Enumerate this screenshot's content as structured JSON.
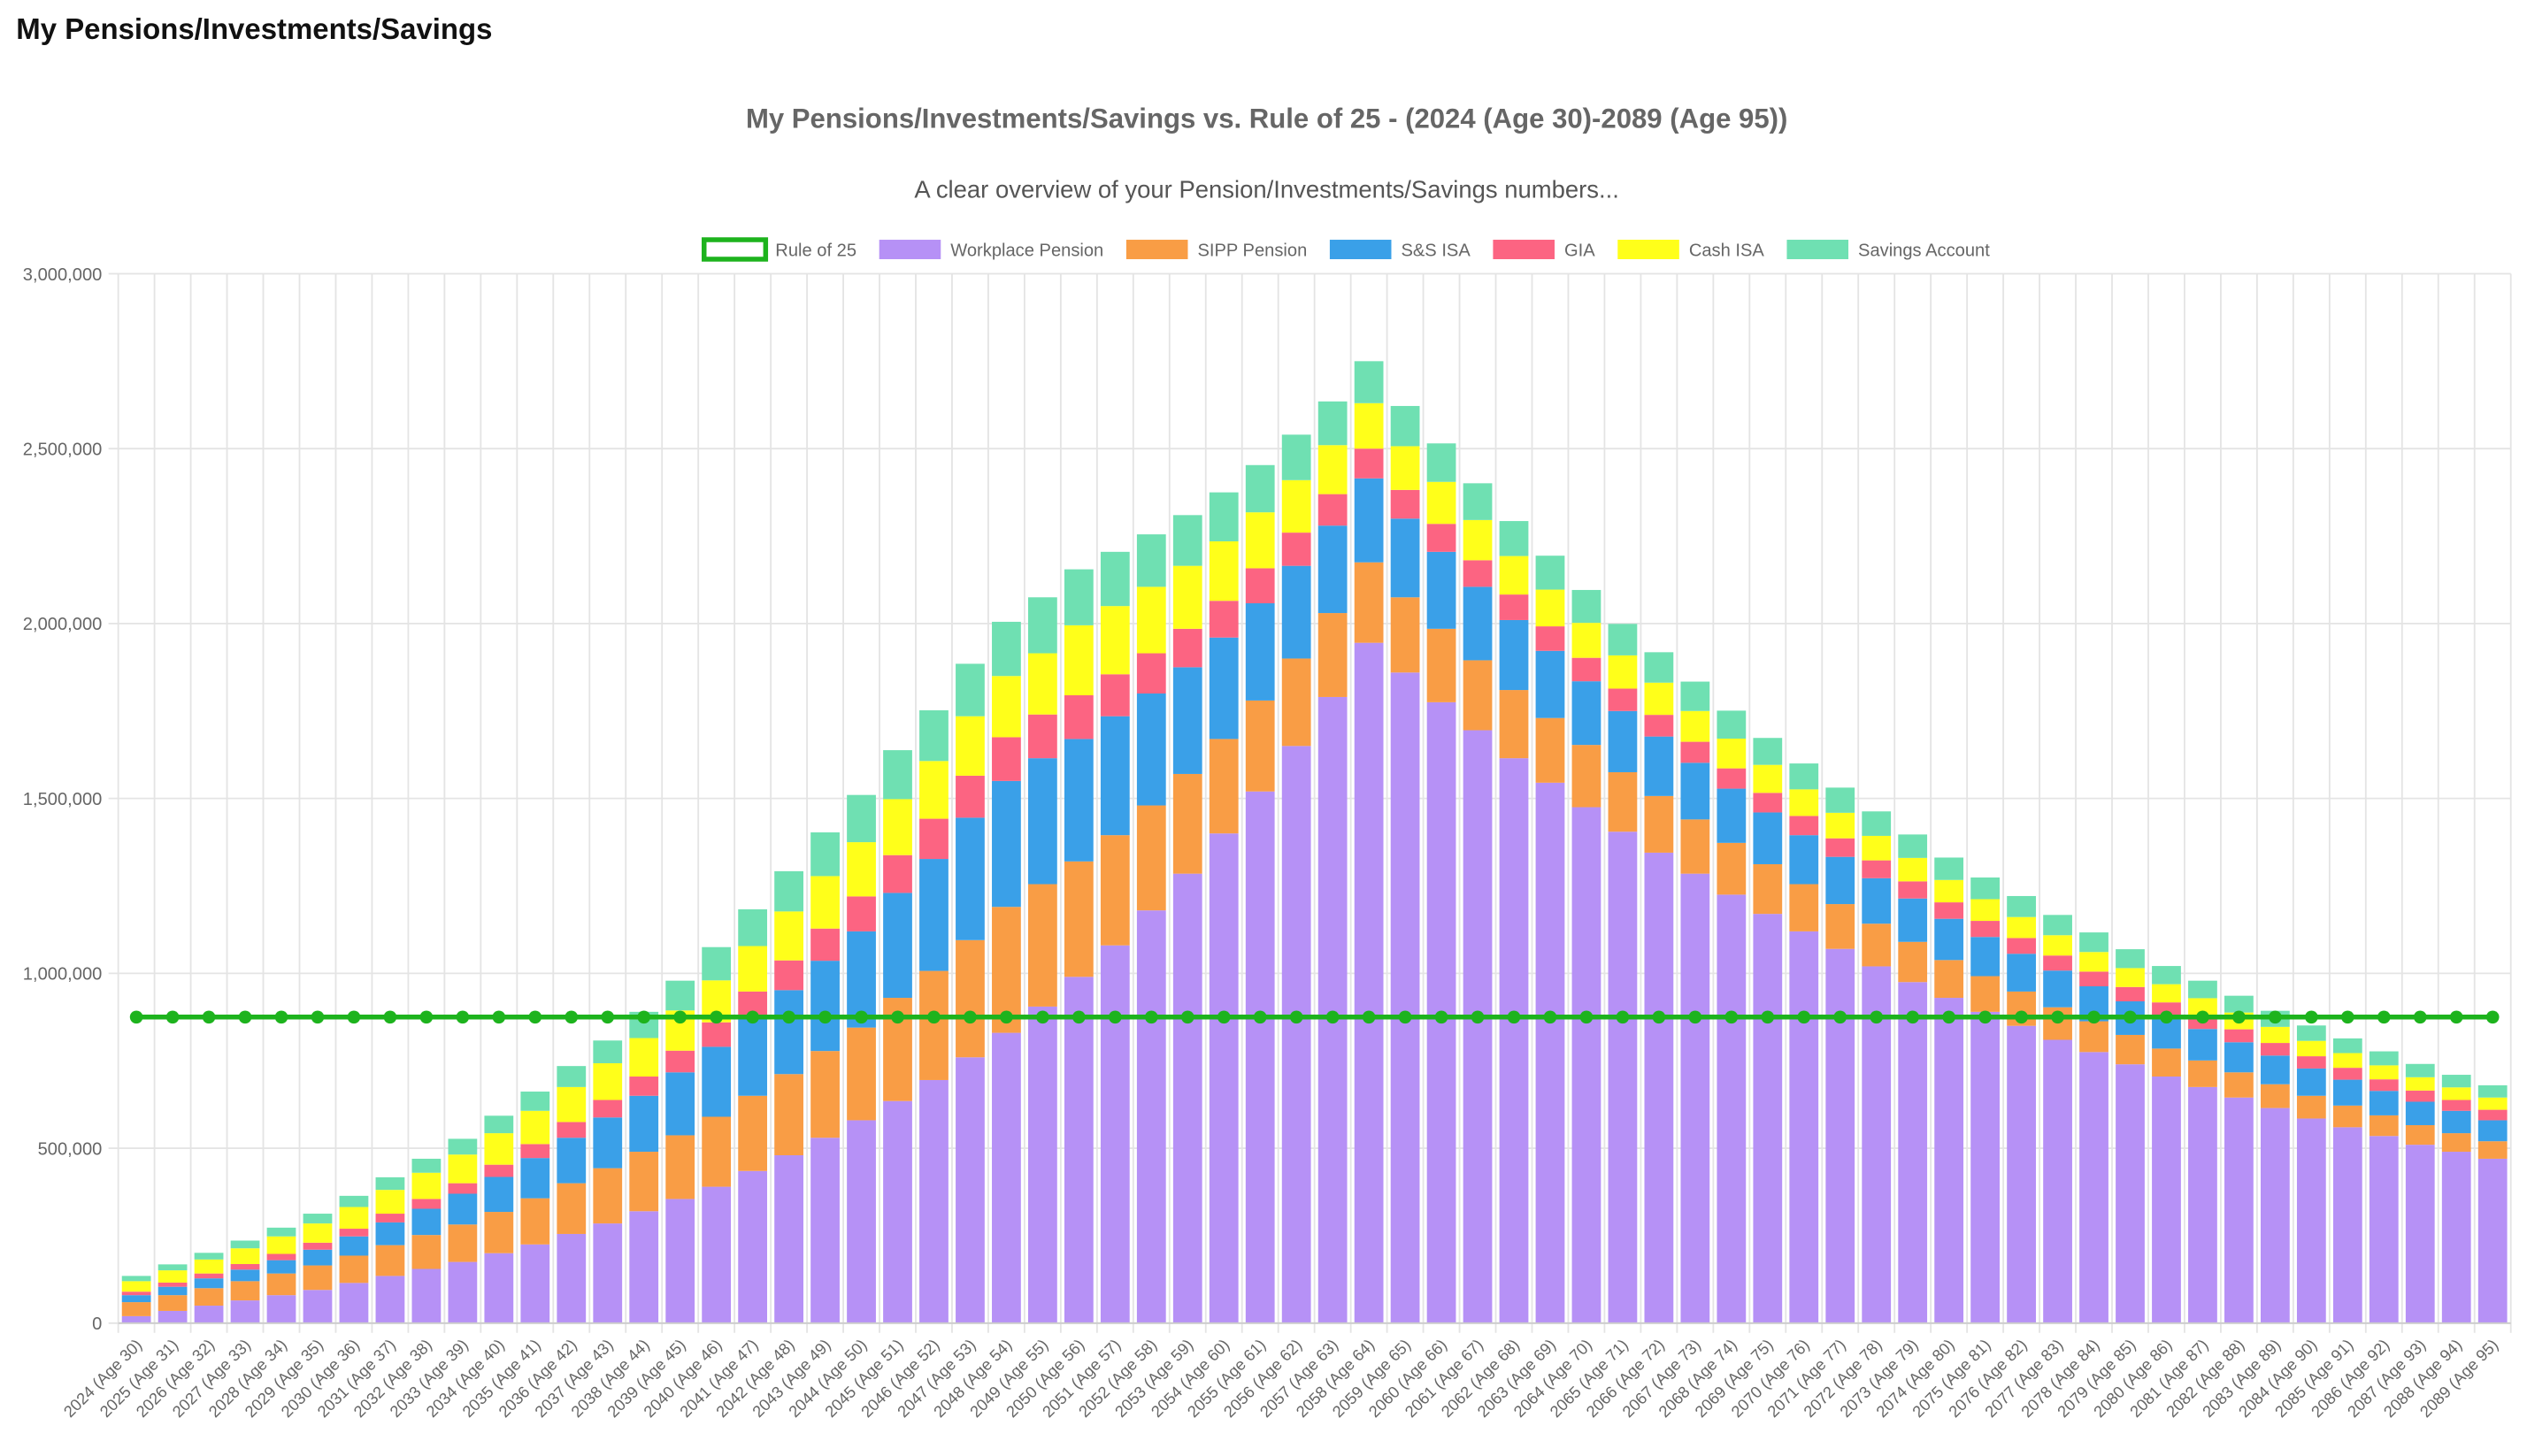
{
  "page_header": {
    "title": "My Pensions/Investments/Savings"
  },
  "chart_data": {
    "type": "bar",
    "stacked": true,
    "title": "My Pensions/Investments/Savings vs. Rule of 25 - (2024 (Age 30)-2089 (Age 95))",
    "subtitle": "A clear overview of your Pension/Investments/Savings numbers...",
    "categories": [
      "2024 (Age 30)",
      "2025 (Age 31)",
      "2026 (Age 32)",
      "2027 (Age 33)",
      "2028 (Age 34)",
      "2029 (Age 35)",
      "2030 (Age 36)",
      "2031 (Age 37)",
      "2032 (Age 38)",
      "2033 (Age 39)",
      "2034 (Age 40)",
      "2035 (Age 41)",
      "2036 (Age 42)",
      "2037 (Age 43)",
      "2038 (Age 44)",
      "2039 (Age 45)",
      "2040 (Age 46)",
      "2041 (Age 47)",
      "2042 (Age 48)",
      "2043 (Age 49)",
      "2044 (Age 50)",
      "2045 (Age 51)",
      "2046 (Age 52)",
      "2047 (Age 53)",
      "2048 (Age 54)",
      "2049 (Age 55)",
      "2050 (Age 56)",
      "2051 (Age 57)",
      "2052 (Age 58)",
      "2053 (Age 59)",
      "2054 (Age 60)",
      "2055 (Age 61)",
      "2056 (Age 62)",
      "2057 (Age 63)",
      "2058 (Age 64)",
      "2059 (Age 65)",
      "2060 (Age 66)",
      "2061 (Age 67)",
      "2062 (Age 68)",
      "2063 (Age 69)",
      "2064 (Age 70)",
      "2065 (Age 71)",
      "2066 (Age 72)",
      "2067 (Age 73)",
      "2068 (Age 74)",
      "2069 (Age 75)",
      "2070 (Age 76)",
      "2071 (Age 77)",
      "2072 (Age 78)",
      "2073 (Age 79)",
      "2074 (Age 80)",
      "2075 (Age 81)",
      "2076 (Age 82)",
      "2077 (Age 83)",
      "2078 (Age 84)",
      "2079 (Age 85)",
      "2080 (Age 86)",
      "2081 (Age 87)",
      "2082 (Age 88)",
      "2083 (Age 89)",
      "2084 (Age 90)",
      "2085 (Age 91)",
      "2086 (Age 92)",
      "2087 (Age 93)",
      "2088 (Age 94)",
      "2089 (Age 95)"
    ],
    "series": [
      {
        "name": "Rule of 25",
        "type": "line",
        "color": "#1db31d",
        "values": [
          875000,
          875000,
          875000,
          875000,
          875000,
          875000,
          875000,
          875000,
          875000,
          875000,
          875000,
          875000,
          875000,
          875000,
          875000,
          875000,
          875000,
          875000,
          875000,
          875000,
          875000,
          875000,
          875000,
          875000,
          875000,
          875000,
          875000,
          875000,
          875000,
          875000,
          875000,
          875000,
          875000,
          875000,
          875000,
          875000,
          875000,
          875000,
          875000,
          875000,
          875000,
          875000,
          875000,
          875000,
          875000,
          875000,
          875000,
          875000,
          875000,
          875000,
          875000,
          875000,
          875000,
          875000,
          875000,
          875000,
          875000,
          875000,
          875000,
          875000,
          875000,
          875000,
          875000,
          875000,
          875000,
          875000
        ]
      },
      {
        "name": "Workplace Pension",
        "type": "bar",
        "color": "#b691f6",
        "values": [
          20000,
          35000,
          50000,
          65000,
          80000,
          95000,
          115000,
          135000,
          155000,
          175000,
          200000,
          225000,
          255000,
          285000,
          320000,
          355000,
          390000,
          435000,
          480000,
          530000,
          580000,
          635000,
          695000,
          760000,
          830000,
          905000,
          990000,
          1080000,
          1180000,
          1285000,
          1400000,
          1520000,
          1650000,
          1790000,
          1945000,
          1860000,
          1775000,
          1695000,
          1615000,
          1545000,
          1475000,
          1405000,
          1345000,
          1285000,
          1225000,
          1170000,
          1120000,
          1070000,
          1020000,
          975000,
          930000,
          890000,
          850000,
          810000,
          775000,
          740000,
          705000,
          675000,
          645000,
          615000,
          585000,
          560000,
          535000,
          510000,
          490000,
          470000
        ]
      },
      {
        "name": "SIPP Pension",
        "type": "bar",
        "color": "#f99d45",
        "values": [
          40000,
          45000,
          50000,
          55000,
          62000,
          70000,
          78000,
          88000,
          97000,
          107000,
          118000,
          132000,
          145000,
          158000,
          170000,
          182000,
          200000,
          215000,
          232000,
          248000,
          265000,
          295000,
          312000,
          335000,
          360000,
          350000,
          330000,
          315000,
          300000,
          285000,
          270000,
          260000,
          250000,
          240000,
          230000,
          215000,
          210000,
          200000,
          195000,
          185000,
          178000,
          170000,
          162000,
          155000,
          148000,
          142000,
          135000,
          128000,
          122000,
          115000,
          108000,
          102000,
          98000,
          93000,
          88000,
          84000,
          80000,
          76000,
          72000,
          68000,
          65000,
          62000,
          59000,
          56000,
          53000,
          50000
        ]
      },
      {
        "name": "S&S ISA",
        "type": "bar",
        "color": "#3aa0e8",
        "values": [
          20000,
          24000,
          28000,
          33000,
          38000,
          45000,
          55000,
          65000,
          75000,
          88000,
          100000,
          115000,
          130000,
          145000,
          160000,
          180000,
          200000,
          220000,
          240000,
          258000,
          275000,
          300000,
          320000,
          350000,
          360000,
          360000,
          350000,
          340000,
          320000,
          305000,
          290000,
          278000,
          265000,
          250000,
          240000,
          225000,
          220000,
          210000,
          200000,
          192000,
          182000,
          175000,
          170000,
          162000,
          155000,
          148000,
          140000,
          135000,
          130000,
          124000,
          118000,
          112000,
          108000,
          105000,
          100000,
          96000,
          92000,
          90000,
          86000,
          82000,
          78000,
          74000,
          70000,
          67000,
          64000,
          60000
        ]
      },
      {
        "name": "GIA",
        "type": "bar",
        "color": "#fc6482",
        "values": [
          10000,
          12000,
          14000,
          16000,
          18000,
          20000,
          22000,
          25000,
          28000,
          30000,
          35000,
          40000,
          45000,
          50000,
          55000,
          62000,
          70000,
          78000,
          85000,
          92000,
          100000,
          108000,
          115000,
          120000,
          125000,
          125000,
          125000,
          120000,
          115000,
          110000,
          105000,
          100000,
          95000,
          90000,
          85000,
          82000,
          80000,
          76000,
          73000,
          70000,
          67000,
          64000,
          62000,
          60000,
          58000,
          56000,
          55000,
          53000,
          51000,
          49000,
          47000,
          46000,
          45000,
          43000,
          42000,
          41000,
          40000,
          38000,
          37000,
          36000,
          35000,
          34000,
          33000,
          32000,
          31000,
          30000
        ]
      },
      {
        "name": "Cash ISA",
        "type": "bar",
        "color": "#ffff1a",
        "values": [
          30000,
          35000,
          40000,
          45000,
          50000,
          55000,
          62000,
          68000,
          75000,
          82000,
          90000,
          95000,
          100000,
          105000,
          110000,
          115000,
          120000,
          130000,
          140000,
          150000,
          155000,
          160000,
          165000,
          170000,
          175000,
          175000,
          200000,
          195000,
          190000,
          180000,
          170000,
          160000,
          150000,
          140000,
          130000,
          125000,
          120000,
          115000,
          110000,
          105000,
          100000,
          95000,
          92000,
          88000,
          85000,
          80000,
          76000,
          73000,
          70000,
          67000,
          64000,
          62000,
          60000,
          58000,
          56000,
          54000,
          52000,
          50000,
          48000,
          46000,
          44000,
          42000,
          40000,
          38000,
          36000,
          35000
        ]
      },
      {
        "name": "Savings Account",
        "type": "bar",
        "color": "#6fe0b2",
        "values": [
          15000,
          17000,
          19000,
          22000,
          25000,
          28000,
          32000,
          36000,
          40000,
          45000,
          50000,
          55000,
          60000,
          65000,
          75000,
          85000,
          95000,
          105000,
          115000,
          125000,
          135000,
          140000,
          145000,
          150000,
          155000,
          160000,
          160000,
          155000,
          150000,
          145000,
          140000,
          135000,
          130000,
          125000,
          120000,
          115000,
          110000,
          105000,
          100000,
          97000,
          94000,
          90000,
          87000,
          84000,
          80000,
          77000,
          74000,
          72000,
          70000,
          67000,
          64000,
          62000,
          60000,
          58000,
          56000,
          54000,
          52000,
          50000,
          48000,
          46000,
          44000,
          42000,
          40000,
          38000,
          36000,
          35000
        ]
      }
    ],
    "ylim": [
      0,
      3000000
    ],
    "yticks": [
      0,
      {
        "value": 500000,
        "label": "500,000"
      },
      {
        "value": 1000000,
        "label": "1,000,000"
      },
      {
        "value": 1500000,
        "label": "1,500,000"
      },
      {
        "value": 2000000,
        "label": "2,000,000"
      },
      {
        "value": 2500000,
        "label": "2,500,000"
      },
      {
        "value": 3000000,
        "label": "3,000,000"
      }
    ],
    "grid": true,
    "legend": "top"
  }
}
